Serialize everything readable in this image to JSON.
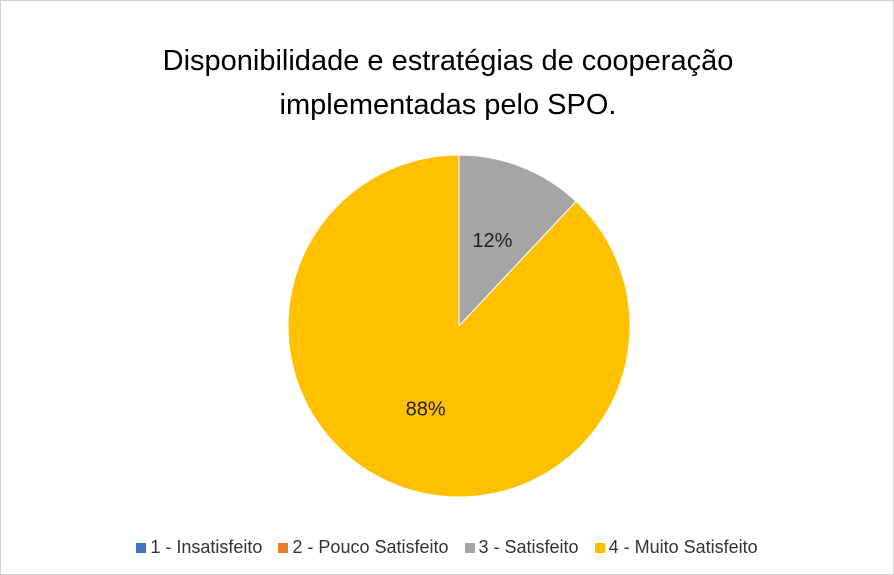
{
  "chart_data": {
    "type": "pie",
    "title": "Disponibilidade e estratégias de cooperação implementadas pelo SPO.",
    "categories": [
      "1 - Insatisfeito",
      "2 - Pouco Satisfeito",
      "3 - Satisfeito",
      "4 - Muito Satisfeito"
    ],
    "values": [
      0,
      0,
      12,
      88
    ],
    "value_labels": [
      null,
      null,
      "12%",
      "88%"
    ],
    "colors": [
      "#4472c4",
      "#ed7d31",
      "#a5a5a5",
      "#ffc000"
    ],
    "legend": "bottom"
  }
}
